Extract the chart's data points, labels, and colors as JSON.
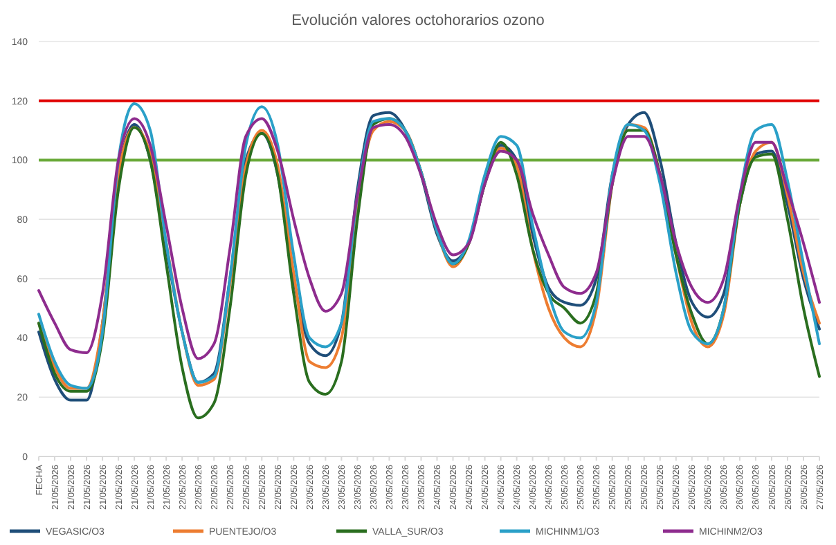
{
  "chart_data": {
    "type": "line",
    "title": "Evolución valores octohorarios ozono",
    "categories": [
      "FECHA",
      "21/05/2026",
      "21/05/2026",
      "21/05/2026",
      "21/05/2026",
      "21/05/2026",
      "21/05/2026",
      "21/05/2026",
      "21/05/2026",
      "22/05/2026",
      "22/05/2026",
      "22/05/2026",
      "22/05/2026",
      "22/05/2026",
      "22/05/2026",
      "22/05/2026",
      "22/05/2026",
      "23/05/2026",
      "23/05/2026",
      "23/05/2026",
      "23/05/2026",
      "23/05/2026",
      "23/05/2026",
      "23/05/2026",
      "23/05/2026",
      "24/05/2026",
      "24/05/2026",
      "24/05/2026",
      "24/05/2026",
      "24/05/2026",
      "24/05/2026",
      "24/05/2026",
      "24/05/2026",
      "25/05/2026",
      "25/05/2026",
      "25/05/2026",
      "25/05/2026",
      "25/05/2026",
      "25/05/2026",
      "25/05/2026",
      "25/05/2026",
      "26/05/2026",
      "26/05/2026",
      "26/05/2026",
      "26/05/2026",
      "26/05/2026",
      "26/05/2026",
      "26/05/2026",
      "26/05/2026",
      "27/05/2026"
    ],
    "series": [
      {
        "name": "VEGASIC/O3",
        "color": "#1f4e79",
        "values": [
          42,
          26,
          19,
          19,
          45,
          95,
          112,
          100,
          70,
          42,
          25,
          28,
          60,
          100,
          109,
          95,
          60,
          38,
          34,
          45,
          90,
          115,
          116,
          110,
          95,
          75,
          66,
          72,
          92,
          105,
          100,
          75,
          57,
          52,
          51,
          60,
          95,
          112,
          116,
          100,
          72,
          52,
          47,
          55,
          85,
          102,
          103,
          85,
          60,
          43
        ]
      },
      {
        "name": "PUENTEJO/O3",
        "color": "#ed7d31",
        "values": [
          45,
          30,
          23,
          23,
          45,
          95,
          111,
          102,
          72,
          42,
          24,
          26,
          58,
          98,
          110,
          98,
          62,
          32,
          30,
          40,
          85,
          110,
          113,
          110,
          96,
          76,
          64,
          72,
          92,
          104,
          98,
          70,
          50,
          40,
          37,
          50,
          92,
          112,
          111,
          95,
          68,
          45,
          37,
          48,
          85,
          103,
          106,
          88,
          62,
          45
        ]
      },
      {
        "name": "VALLA_SUR/O3",
        "color": "#2a6e1f",
        "values": [
          45,
          28,
          22,
          22,
          40,
          90,
          111,
          100,
          65,
          30,
          13,
          18,
          50,
          95,
          109,
          95,
          55,
          25,
          21,
          32,
          80,
          112,
          114,
          110,
          96,
          76,
          65,
          72,
          92,
          106,
          95,
          70,
          55,
          50,
          45,
          55,
          92,
          110,
          110,
          95,
          68,
          48,
          38,
          50,
          85,
          101,
          102,
          80,
          50,
          27
        ]
      },
      {
        "name": "MICHINM1/O3",
        "color": "#2aa0c8",
        "values": [
          48,
          32,
          24,
          23,
          42,
          100,
          119,
          110,
          72,
          42,
          25,
          27,
          60,
          105,
          118,
          105,
          68,
          40,
          37,
          45,
          88,
          113,
          114,
          110,
          96,
          76,
          65,
          73,
          95,
          108,
          105,
          78,
          55,
          42,
          40,
          52,
          95,
          112,
          110,
          92,
          62,
          42,
          38,
          50,
          88,
          110,
          112,
          93,
          65,
          38
        ]
      },
      {
        "name": "MICHINM2/O3",
        "color": "#8e2c8e",
        "values": [
          56,
          45,
          36,
          35,
          55,
          100,
          114,
          105,
          78,
          50,
          33,
          38,
          70,
          108,
          114,
          103,
          80,
          60,
          49,
          55,
          88,
          111,
          112,
          108,
          95,
          78,
          68,
          72,
          92,
          103,
          100,
          82,
          68,
          57,
          55,
          62,
          92,
          108,
          108,
          95,
          72,
          57,
          52,
          60,
          88,
          106,
          106,
          90,
          72,
          52
        ]
      }
    ],
    "ylim": [
      0,
      140
    ],
    "yticks": [
      0,
      20,
      40,
      60,
      80,
      100,
      120,
      140
    ],
    "grid": "y",
    "legend": "bottom",
    "ref_lines": [
      {
        "axis": "y",
        "value": 120,
        "color": "#e00000"
      },
      {
        "axis": "y",
        "value": 100,
        "color": "#6aaa3a"
      }
    ]
  }
}
